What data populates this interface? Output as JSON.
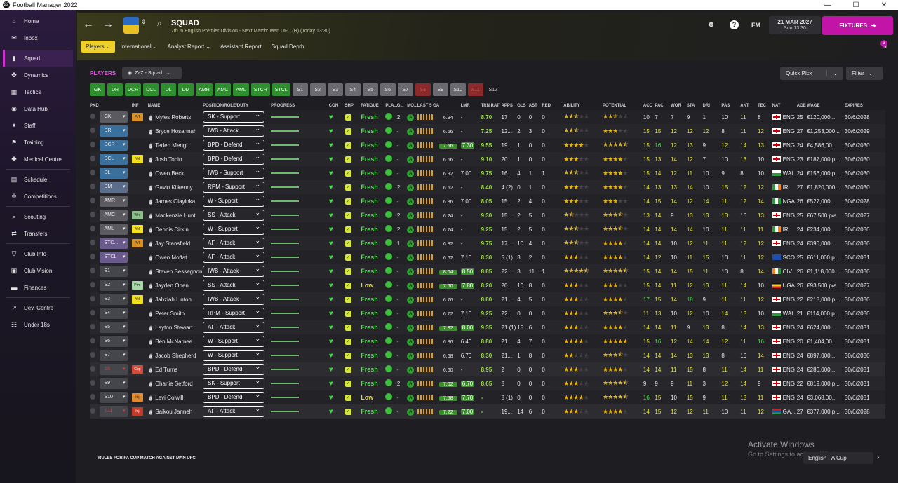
{
  "window": {
    "title": "Football Manager 2022",
    "controls": [
      "—",
      "☐",
      "✕"
    ]
  },
  "sidebar": {
    "items": [
      {
        "label": "Home",
        "icon": "home-icon",
        "glyph": "⌂"
      },
      {
        "label": "Inbox",
        "icon": "inbox-icon",
        "glyph": "✉"
      },
      {
        "label": "Squad",
        "icon": "squad-icon",
        "glyph": "▮",
        "active": true
      },
      {
        "label": "Dynamics",
        "icon": "dynamics-icon",
        "glyph": "✣"
      },
      {
        "label": "Tactics",
        "icon": "tactics-icon",
        "glyph": "▦"
      },
      {
        "label": "Data Hub",
        "icon": "data-hub-icon",
        "glyph": "◉"
      },
      {
        "label": "Staff",
        "icon": "staff-icon",
        "glyph": "✦"
      },
      {
        "label": "Training",
        "icon": "training-icon",
        "glyph": "⚑"
      },
      {
        "label": "Medical Centre",
        "icon": "medical-icon",
        "glyph": "✚"
      },
      {
        "label": "Schedule",
        "icon": "schedule-icon",
        "glyph": "▤"
      },
      {
        "label": "Competitions",
        "icon": "competitions-icon",
        "glyph": "♔"
      },
      {
        "label": "Scouting",
        "icon": "scouting-icon",
        "glyph": "⌕"
      },
      {
        "label": "Transfers",
        "icon": "transfers-icon",
        "glyph": "⇄"
      },
      {
        "label": "Club Info",
        "icon": "club-info-icon",
        "glyph": "⛉"
      },
      {
        "label": "Club Vision",
        "icon": "club-vision-icon",
        "glyph": "▣"
      },
      {
        "label": "Finances",
        "icon": "finances-icon",
        "glyph": "▬"
      },
      {
        "label": "Dev. Centre",
        "icon": "dev-centre-icon",
        "glyph": "↗"
      },
      {
        "label": "Under 18s",
        "icon": "under18-icon",
        "glyph": "☷"
      }
    ]
  },
  "header": {
    "title": "SQUAD",
    "subtitle": "7th in English Premier Division - Next Match: Man UFC (H) (Today 13:30)",
    "date": "21 MAR 2027",
    "time": "Sun 13:30",
    "fixtures": "FIXTURES",
    "fm": "FM",
    "notifications": "3",
    "tabs": [
      "Players",
      "International",
      "Analyst Report",
      "Assistant Report",
      "Squad Depth"
    ]
  },
  "panel": {
    "players_label": "PLAYERS",
    "view": "ZaZ - Squad",
    "quick_pick": "Quick Pick",
    "filter": "Filter",
    "positions": [
      {
        "l": "GK",
        "t": "g"
      },
      {
        "l": "DR",
        "t": "g"
      },
      {
        "l": "DCR",
        "t": "g"
      },
      {
        "l": "DCL",
        "t": "g"
      },
      {
        "l": "DL",
        "t": "g"
      },
      {
        "l": "DM",
        "t": "g"
      },
      {
        "l": "AMR",
        "t": "g"
      },
      {
        "l": "AMC",
        "t": "g"
      },
      {
        "l": "AML",
        "t": "g"
      },
      {
        "l": "STCR",
        "t": "g"
      },
      {
        "l": "STCL",
        "t": "g"
      },
      {
        "l": "S1",
        "t": "s"
      },
      {
        "l": "S2",
        "t": "s"
      },
      {
        "l": "S3",
        "t": "s"
      },
      {
        "l": "S4",
        "t": "s"
      },
      {
        "l": "S5",
        "t": "s"
      },
      {
        "l": "S6",
        "t": "s"
      },
      {
        "l": "S7",
        "t": "s"
      },
      {
        "l": "S8",
        "t": "r"
      },
      {
        "l": "S9",
        "t": "s"
      },
      {
        "l": "S10",
        "t": "s"
      },
      {
        "l": "S11",
        "t": "r"
      },
      {
        "l": "S12",
        "t": "d"
      }
    ]
  },
  "columns": [
    "PKD",
    "",
    "INF",
    "NAME",
    "POSITION/ROLE/DUTY",
    "PROGRESS",
    "CON",
    "SHP",
    "FATIGUE",
    "PLA...",
    "G...",
    "MO...",
    "LAST 5 GAMES",
    "",
    "LMR",
    "TRN RAT",
    "APPS",
    "GLS",
    "AST",
    "RED",
    "ABILITY",
    "POTENTIAL",
    "ACC",
    "PAC",
    "WOR",
    "STA",
    "DRI",
    "PAS",
    "ANT",
    "TEC",
    "NAT",
    "AGE",
    "WAGE",
    "EXPIRES"
  ],
  "players": [
    {
      "pos": "GK",
      "pc": "gk",
      "inf": "PrT",
      "ic": "prt",
      "name": "Myles Roberts",
      "role": "SK - Support",
      "fatigue": "Fresh",
      "g": "2",
      "lr": "6.94",
      "lrhi": false,
      "lmr": "-",
      "trn": "8.70",
      "apps": "17",
      "gls": "0",
      "ast": "0",
      "red": "0",
      "ab": 2.5,
      "pot": 2.5,
      "acc": "10",
      "pac": "7",
      "wor": "7",
      "sta": "9",
      "dri": "1",
      "pas": "10",
      "ant": "11",
      "tec": "8",
      "nat": "ENG",
      "fl": "f-eng",
      "age": "25",
      "wage": "€120,000...",
      "exp": "30/6/2028"
    },
    {
      "pos": "DR",
      "pc": "df",
      "inf": "",
      "ic": "",
      "name": "Bryce Hosannah",
      "role": "IWB - Attack",
      "fatigue": "Fresh",
      "g": "-",
      "lr": "6.66",
      "lrhi": false,
      "lmr": "-",
      "trn": "7.25",
      "apps": "12...",
      "gls": "2",
      "ast": "3",
      "red": "0",
      "ab": 2.5,
      "pot": 3,
      "acc": "15",
      "pac": "15",
      "wor": "12",
      "sta": "12",
      "dri": "12",
      "pas": "8",
      "ant": "11",
      "tec": "12",
      "nat": "ENG",
      "fl": "f-eng",
      "age": "27",
      "wage": "€1,253,000...",
      "exp": "30/6/2029"
    },
    {
      "pos": "DCR",
      "pc": "df",
      "inf": "",
      "ic": "",
      "name": "Teden Mengi",
      "role": "BPD - Defend",
      "fatigue": "Fresh",
      "g": "-",
      "lr": "7.56",
      "lrhi": true,
      "lmr": "7.30",
      "trn": "9.55",
      "apps": "19...",
      "gls": "1",
      "ast": "0",
      "red": "0",
      "ab": 4,
      "pot": 4.5,
      "acc": "15",
      "pac": "16",
      "wor": "12",
      "sta": "13",
      "dri": "9",
      "pas": "12",
      "ant": "14",
      "tec": "13",
      "nat": "ENG",
      "fl": "f-eng",
      "age": "24",
      "wage": "€4,586,00...",
      "exp": "30/6/2030"
    },
    {
      "pos": "DCL",
      "pc": "df",
      "inf": "Yel",
      "ic": "yel",
      "name": "Josh Tobin",
      "role": "BPD - Defend",
      "fatigue": "Fresh",
      "g": "-",
      "lr": "6.66",
      "lrhi": false,
      "lmr": "-",
      "trn": "9.10",
      "apps": "20",
      "gls": "1",
      "ast": "0",
      "red": "0",
      "ab": 3,
      "pot": 4,
      "acc": "15",
      "pac": "13",
      "wor": "14",
      "sta": "12",
      "dri": "7",
      "pas": "10",
      "ant": "13",
      "tec": "10",
      "nat": "ENG",
      "fl": "f-eng",
      "age": "23",
      "wage": "€187,000 p...",
      "exp": "30/6/2030"
    },
    {
      "pos": "DL",
      "pc": "df",
      "inf": "",
      "ic": "",
      "name": "Owen Beck",
      "role": "IWB - Support",
      "fatigue": "Fresh",
      "g": "-",
      "lr": "6.92",
      "lrhi": false,
      "lmr": "7.00",
      "trn": "9.75",
      "apps": "16...",
      "gls": "4",
      "ast": "1",
      "red": "1",
      "ab": 2.5,
      "pot": 4,
      "acc": "15",
      "pac": "14",
      "wor": "12",
      "sta": "11",
      "dri": "10",
      "pas": "9",
      "ant": "8",
      "tec": "10",
      "nat": "WAL",
      "fl": "f-wal",
      "age": "24",
      "wage": "€156,000 p...",
      "exp": "30/6/2030"
    },
    {
      "pos": "DM",
      "pc": "dm",
      "inf": "",
      "ic": "",
      "name": "Gavin Kilkenny",
      "role": "RPM - Support",
      "fatigue": "Fresh",
      "g": "2",
      "lr": "6.52",
      "lrhi": false,
      "lmr": "-",
      "trn": "8.40",
      "apps": "4 (2)",
      "gls": "0",
      "ast": "1",
      "red": "0",
      "ab": 3,
      "pot": 4,
      "acc": "14",
      "pac": "13",
      "wor": "13",
      "sta": "14",
      "dri": "10",
      "pas": "15",
      "ant": "12",
      "tec": "12",
      "nat": "IRL",
      "fl": "f-irl",
      "age": "27",
      "wage": "€1,820,000...",
      "exp": "30/6/2030"
    },
    {
      "pos": "AMR",
      "pc": "mf",
      "inf": "",
      "ic": "",
      "name": "James Olayinka",
      "role": "W - Support",
      "fatigue": "Fresh",
      "g": "-",
      "lr": "6.86",
      "lrhi": false,
      "lmr": "7.00",
      "trn": "8.05",
      "apps": "15...",
      "gls": "2",
      "ast": "4",
      "red": "0",
      "ab": 3,
      "pot": 3,
      "acc": "14",
      "pac": "15",
      "wor": "14",
      "sta": "12",
      "dri": "14",
      "pas": "11",
      "ant": "12",
      "tec": "14",
      "nat": "NGA",
      "fl": "f-nga",
      "age": "26",
      "wage": "€527,000...",
      "exp": "30/6/2028"
    },
    {
      "pos": "AMC",
      "pc": "mf",
      "inf": "Wnt",
      "ic": "wnt",
      "name": "Mackenzie Hunt",
      "role": "SS - Attack",
      "fatigue": "Fresh",
      "g": "2",
      "lr": "6.24",
      "lrhi": false,
      "lmr": "-",
      "trn": "9.30",
      "apps": "15...",
      "gls": "2",
      "ast": "5",
      "red": "0",
      "ab": 1.5,
      "pot": 3.5,
      "acc": "13",
      "pac": "14",
      "wor": "9",
      "sta": "13",
      "dri": "13",
      "pas": "13",
      "ant": "10",
      "tec": "13",
      "nat": "ENG",
      "fl": "f-eng",
      "age": "25",
      "wage": "€67,500 p/a",
      "exp": "30/6/2027"
    },
    {
      "pos": "AML",
      "pc": "mf",
      "inf": "Yel",
      "ic": "yel",
      "name": "Dennis Cirkin",
      "role": "W - Support",
      "fatigue": "Fresh",
      "g": "2",
      "lr": "6.74",
      "lrhi": false,
      "lmr": "-",
      "trn": "9.25",
      "apps": "15...",
      "gls": "2",
      "ast": "5",
      "red": "0",
      "ab": 2.5,
      "pot": 3.5,
      "acc": "14",
      "pac": "14",
      "wor": "14",
      "sta": "14",
      "dri": "10",
      "pas": "11",
      "ant": "11",
      "tec": "11",
      "nat": "IRL",
      "fl": "f-irl",
      "age": "24",
      "wage": "€234,000...",
      "exp": "30/6/2030"
    },
    {
      "pos": "STC...",
      "pc": "st",
      "inf": "PrT",
      "ic": "prt",
      "name": "Jay Stansfield",
      "role": "AF - Attack",
      "fatigue": "Fresh",
      "g": "1",
      "lr": "6.82",
      "lrhi": false,
      "lmr": "-",
      "trn": "9.75",
      "apps": "17...",
      "gls": "10",
      "ast": "4",
      "red": "0",
      "ab": 2.5,
      "pot": 4,
      "acc": "14",
      "pac": "14",
      "wor": "10",
      "sta": "12",
      "dri": "11",
      "pas": "11",
      "ant": "12",
      "tec": "12",
      "nat": "ENG",
      "fl": "f-eng",
      "age": "24",
      "wage": "€390,000...",
      "exp": "30/6/2030"
    },
    {
      "pos": "STCL",
      "pc": "st",
      "inf": "",
      "ic": "",
      "name": "Owen Moffat",
      "role": "AF - Attack",
      "fatigue": "Fresh",
      "g": "-",
      "lr": "6.62",
      "lrhi": false,
      "lmr": "7.10",
      "trn": "8.30",
      "apps": "5 (1)",
      "gls": "3",
      "ast": "2",
      "red": "0",
      "ab": 3,
      "pot": 4,
      "acc": "14",
      "pac": "12",
      "wor": "10",
      "sta": "11",
      "dri": "15",
      "pas": "10",
      "ant": "11",
      "tec": "12",
      "nat": "SCO",
      "fl": "f-sco",
      "age": "25",
      "wage": "€611,000 p...",
      "exp": "30/6/2031"
    },
    {
      "pos": "S1",
      "pc": "sb",
      "inf": "",
      "ic": "",
      "name": "Steven Sessegnon",
      "role": "IWB - Attack",
      "fatigue": "Fresh",
      "g": "-",
      "lr": "8.04",
      "lrhi": true,
      "lmr": "8.50",
      "trn": "8.85",
      "apps": "22...",
      "gls": "3",
      "ast": "11",
      "red": "1",
      "ab": 4.5,
      "pot": 4.5,
      "acc": "15",
      "pac": "14",
      "wor": "14",
      "sta": "15",
      "dri": "11",
      "pas": "10",
      "ant": "8",
      "tec": "14",
      "nat": "CIV",
      "fl": "f-civ",
      "age": "26",
      "wage": "€1,118,000...",
      "exp": "30/6/2030"
    },
    {
      "pos": "S2",
      "pc": "sb",
      "inf": "Prm",
      "ic": "prm",
      "name": "Jayden Onen",
      "role": "SS - Attack",
      "fatigue": "Low",
      "g": "-",
      "lr": "7.60",
      "lrhi": true,
      "lmr": "7.80",
      "trn": "8.20",
      "apps": "20...",
      "gls": "10",
      "ast": "8",
      "red": "0",
      "ab": 3,
      "pot": 3,
      "acc": "15",
      "pac": "14",
      "wor": "11",
      "sta": "12",
      "dri": "13",
      "pas": "11",
      "ant": "14",
      "tec": "10",
      "nat": "UGA",
      "fl": "f-uga",
      "age": "26",
      "wage": "€93,500 p/a",
      "exp": "30/6/2027"
    },
    {
      "pos": "S3",
      "pc": "sb",
      "inf": "Yel",
      "ic": "yel",
      "name": "Jahziah Linton",
      "role": "IWB - Attack",
      "fatigue": "Fresh",
      "g": "-",
      "lr": "6.76",
      "lrhi": false,
      "lmr": "-",
      "trn": "8.80",
      "apps": "21...",
      "gls": "4",
      "ast": "5",
      "red": "0",
      "ab": 3,
      "pot": 4,
      "acc": "17",
      "pac": "15",
      "wor": "14",
      "sta": "18",
      "dri": "9",
      "pas": "11",
      "ant": "11",
      "tec": "12",
      "nat": "ENG",
      "fl": "f-eng",
      "age": "22",
      "wage": "€218,000 p...",
      "exp": "30/6/2030"
    },
    {
      "pos": "S4",
      "pc": "sb",
      "inf": "",
      "ic": "",
      "name": "Peter Smith",
      "role": "RPM - Support",
      "fatigue": "Fresh",
      "g": "-",
      "lr": "6.72",
      "lrhi": false,
      "lmr": "7.10",
      "trn": "9.25",
      "apps": "22...",
      "gls": "0",
      "ast": "0",
      "red": "0",
      "ab": 3,
      "pot": 3.5,
      "acc": "11",
      "pac": "13",
      "wor": "10",
      "sta": "12",
      "dri": "10",
      "pas": "14",
      "ant": "13",
      "tec": "10",
      "nat": "WAL",
      "fl": "f-wal",
      "age": "21",
      "wage": "€114,000 p...",
      "exp": "30/6/2030"
    },
    {
      "pos": "S5",
      "pc": "sb",
      "inf": "",
      "ic": "",
      "name": "Layton Stewart",
      "role": "AF - Attack",
      "fatigue": "Fresh",
      "g": "-",
      "lr": "7.82",
      "lrhi": true,
      "lmr": "8.00",
      "trn": "9.35",
      "apps": "21 (1)",
      "gls": "15",
      "ast": "6",
      "red": "0",
      "ab": 3,
      "pot": 4,
      "acc": "14",
      "pac": "14",
      "wor": "11",
      "sta": "9",
      "dri": "13",
      "pas": "8",
      "ant": "14",
      "tec": "13",
      "nat": "ENG",
      "fl": "f-eng",
      "age": "24",
      "wage": "€624,000...",
      "exp": "30/6/2031"
    },
    {
      "pos": "S6",
      "pc": "sb",
      "inf": "",
      "ic": "",
      "name": "Ben McNamee",
      "role": "W - Support",
      "fatigue": "Fresh",
      "g": "-",
      "lr": "6.86",
      "lrhi": false,
      "lmr": "6.40",
      "trn": "8.80",
      "apps": "21...",
      "gls": "4",
      "ast": "7",
      "red": "0",
      "ab": 4,
      "pot": 5,
      "acc": "15",
      "pac": "16",
      "wor": "12",
      "sta": "14",
      "dri": "14",
      "pas": "12",
      "ant": "11",
      "tec": "16",
      "nat": "ENG",
      "fl": "f-eng",
      "age": "20",
      "wage": "€1,404,00...",
      "exp": "30/6/2031"
    },
    {
      "pos": "S7",
      "pc": "sb",
      "inf": "",
      "ic": "",
      "name": "Jacob Shepherd",
      "role": "W - Support",
      "fatigue": "Fresh",
      "g": "-",
      "lr": "6.68",
      "lrhi": false,
      "lmr": "6.70",
      "trn": "8.30",
      "apps": "21...",
      "gls": "1",
      "ast": "8",
      "red": "0",
      "ab": 2,
      "pot": 3.5,
      "acc": "14",
      "pac": "14",
      "wor": "14",
      "sta": "13",
      "dri": "13",
      "pas": "8",
      "ant": "10",
      "tec": "14",
      "nat": "ENG",
      "fl": "f-eng",
      "age": "24",
      "wage": "€897,000...",
      "exp": "30/6/2030"
    },
    {
      "pos": "S8",
      "pc": "res",
      "inf": "Cup",
      "ic": "cup",
      "name": "Ed Turns",
      "role": "BPD - Defend",
      "fatigue": "Fresh",
      "g": "-",
      "lr": "6.60",
      "lrhi": false,
      "lmr": "-",
      "trn": "8.95",
      "apps": "2",
      "gls": "0",
      "ast": "0",
      "red": "0",
      "ab": 3,
      "pot": 4,
      "acc": "14",
      "pac": "14",
      "wor": "11",
      "sta": "15",
      "dri": "8",
      "pas": "11",
      "ant": "14",
      "tec": "11",
      "nat": "ENG",
      "fl": "f-eng",
      "age": "24",
      "wage": "€286,000...",
      "exp": "30/6/2031"
    },
    {
      "pos": "S9",
      "pc": "sb",
      "inf": "",
      "ic": "",
      "name": "Charlie Setford",
      "role": "SK - Support",
      "fatigue": "Fresh",
      "g": "2",
      "lr": "7.02",
      "lrhi": true,
      "lmr": "6.70",
      "trn": "8.65",
      "apps": "8",
      "gls": "0",
      "ast": "0",
      "red": "0",
      "ab": 3,
      "pot": 4.5,
      "acc": "9",
      "pac": "9",
      "wor": "9",
      "sta": "11",
      "dri": "3",
      "pas": "12",
      "ant": "14",
      "tec": "9",
      "nat": "ENG",
      "fl": "f-eng",
      "age": "22",
      "wage": "€819,000 p...",
      "exp": "30/6/2031"
    },
    {
      "pos": "S10",
      "pc": "sb",
      "inf": "Inj",
      "ic": "injo",
      "name": "Levi Colwill",
      "role": "BPD - Defend",
      "fatigue": "Low",
      "g": "-",
      "lr": "7.58",
      "lrhi": true,
      "lmr": "7.70",
      "trn": "-",
      "apps": "8 (1)",
      "gls": "0",
      "ast": "0",
      "red": "0",
      "ab": 4,
      "pot": 4.5,
      "acc": "16",
      "pac": "15",
      "wor": "10",
      "sta": "15",
      "dri": "9",
      "pas": "11",
      "ant": "13",
      "tec": "11",
      "nat": "ENG",
      "fl": "f-eng",
      "age": "24",
      "wage": "€3,068,00...",
      "exp": "30/6/2031"
    },
    {
      "pos": "S11",
      "pc": "res",
      "inf": "Inj",
      "ic": "inj",
      "name": "Saikou Janneh",
      "role": "AF - Attack",
      "fatigue": "Fresh",
      "g": "-",
      "lr": "7.22",
      "lrhi": true,
      "lmr": "7.00",
      "trn": "-",
      "apps": "19...",
      "gls": "14",
      "ast": "6",
      "red": "0",
      "ab": 3,
      "pot": 4,
      "acc": "14",
      "pac": "15",
      "wor": "12",
      "sta": "12",
      "dri": "11",
      "pas": "10",
      "ant": "11",
      "tec": "12",
      "nat": "GA...",
      "fl": "f-gam",
      "age": "27",
      "wage": "€377,000 p...",
      "exp": "30/6/2028"
    }
  ],
  "footer": {
    "rules": "RULES FOR FA CUP MATCH AGAINST MAN UFC",
    "cup": "English FA Cup",
    "watermark1": "Activate Windows",
    "watermark2": "Go to Settings to activate Windows."
  }
}
